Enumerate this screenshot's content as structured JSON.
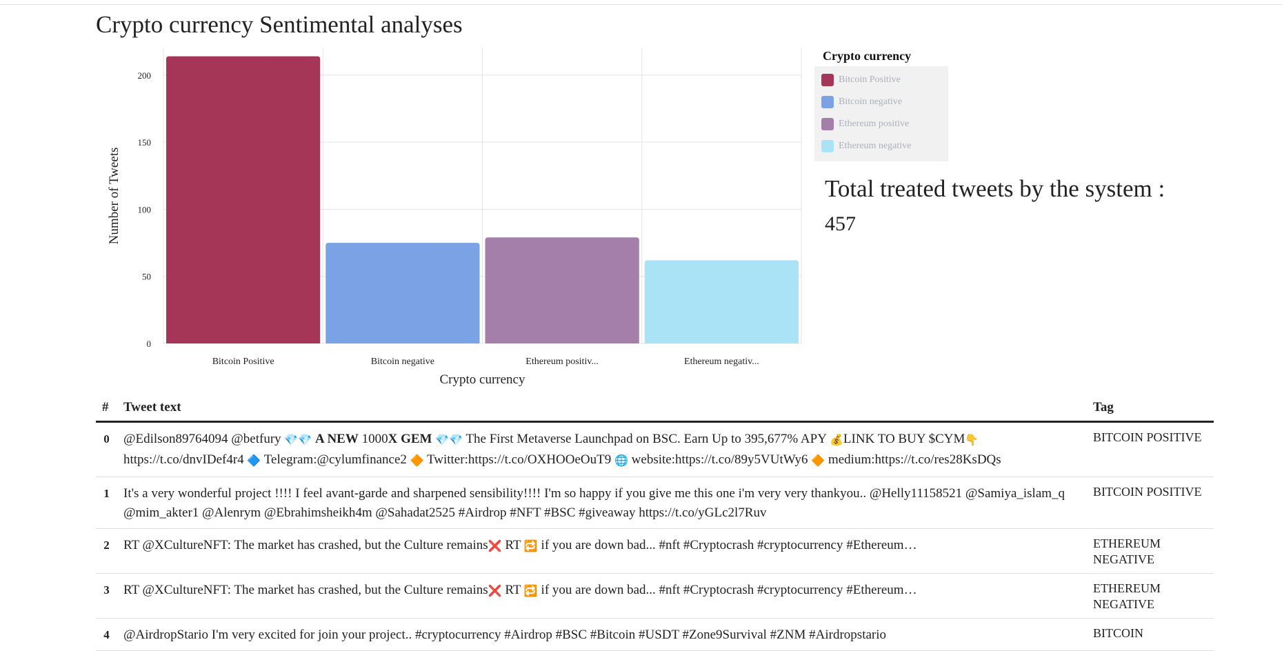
{
  "page": {
    "title": "Crypto currency Sentimental analyses",
    "total_label": "Total treated tweets by the system :",
    "total_value": "457"
  },
  "chart_data": {
    "type": "bar",
    "categories": [
      "Bitcoin Positive",
      "Bitcoin negative",
      "Ethereum positive",
      "Ethereum negative"
    ],
    "tick_labels": [
      "Bitcoin Positive",
      "Bitcoin negative",
      "Ethereum positiv...",
      "Ethereum negativ..."
    ],
    "values": [
      214,
      75,
      79,
      62
    ],
    "colors": [
      "#a53658",
      "#7ba2e4",
      "#a47faa",
      "#abe3f6"
    ],
    "xlabel": "Crypto currency",
    "ylabel": "Number of Tweets",
    "ylim": [
      0,
      220
    ],
    "yticks": [
      0,
      50,
      100,
      150,
      200
    ],
    "grid": true,
    "legend": {
      "title": "Crypto currency",
      "placement": "right",
      "items": [
        "Bitcoin Positive",
        "Bitcoin negative",
        "Ethereum positive",
        "Ethereum negative"
      ]
    }
  },
  "table": {
    "headers": [
      "#",
      "Tweet text",
      "Tag"
    ],
    "rows": [
      {
        "index": "0",
        "parts": [
          {
            "t": "@Edilson89764094 @betfury "
          },
          {
            "e": "💎💎",
            "icon": "diamond-emoji-icon"
          },
          {
            "t": " "
          },
          {
            "t": "A NEW",
            "b": true
          },
          {
            "t": " 1000"
          },
          {
            "t": "X GEM",
            "b": true
          },
          {
            "t": " "
          },
          {
            "e": "💎💎",
            "icon": "diamond-emoji-icon"
          },
          {
            "t": " The First Metaverse Launchpad on BSC. Earn Up to 395,677% APY "
          },
          {
            "e": "💰",
            "icon": "money-bag-emoji-icon"
          },
          {
            "t": "LINK TO BUY $CYM"
          },
          {
            "e": "👇",
            "icon": "pointing-down-emoji-icon"
          },
          {
            "t": " https://t.co/dnvIDef4r4 "
          },
          {
            "e": "🔷",
            "icon": "blue-diamond-emoji-icon"
          },
          {
            "t": " Telegram:@cylumfinance2 "
          },
          {
            "e": "🔶",
            "icon": "orange-diamond-emoji-icon"
          },
          {
            "t": " Twitter:https://t.co/OXHOOeOuT9 "
          },
          {
            "e": "🌐",
            "icon": "globe-emoji-icon"
          },
          {
            "t": " website:https://t.co/89y5VUtWy6 "
          },
          {
            "e": "🔶",
            "icon": "orange-diamond-emoji-icon"
          },
          {
            "t": " medium:https://t.co/res28KsDQs"
          }
        ],
        "tag": "BITCOIN POSITIVE"
      },
      {
        "index": "1",
        "parts": [
          {
            "t": "It's a very wonderful project !!!! I feel avant-garde and sharpened sensibility!!!! I'm so happy if you give me this one i'm very very thankyou.. @Helly11158521 @Samiya_islam_q @mim_akter1 @Alenrym @Ebrahimsheikh4m @Sahadat2525 #Airdrop #NFT #BSC #giveaway https://t.co/yGLc2l7Ruv"
          }
        ],
        "tag": "BITCOIN POSITIVE"
      },
      {
        "index": "2",
        "parts": [
          {
            "t": "RT @XCultureNFT: The market has crashed, but the Culture remains"
          },
          {
            "e": "❌",
            "icon": "cross-mark-emoji-icon"
          },
          {
            "t": " RT "
          },
          {
            "e": "🔁",
            "icon": "repeat-emoji-icon"
          },
          {
            "t": " if you are down bad... #nft #Cryptocrash #cryptocurrency #Ethereum…"
          }
        ],
        "tag": "ETHEREUM NEGATIVE"
      },
      {
        "index": "3",
        "parts": [
          {
            "t": "RT @XCultureNFT: The market has crashed, but the Culture remains"
          },
          {
            "e": "❌",
            "icon": "cross-mark-emoji-icon"
          },
          {
            "t": " RT "
          },
          {
            "e": "🔁",
            "icon": "repeat-emoji-icon"
          },
          {
            "t": " if you are down bad... #nft #Cryptocrash #cryptocurrency #Ethereum…"
          }
        ],
        "tag": "ETHEREUM NEGATIVE"
      },
      {
        "index": "4",
        "parts": [
          {
            "t": "@AirdropStario I'm very excited for join your project.. #cryptocurrency #Airdrop #BSC #Bitcoin #USDT #Zone9Survival #ZNM #Airdropstario"
          }
        ],
        "tag": "BITCOIN"
      }
    ]
  }
}
